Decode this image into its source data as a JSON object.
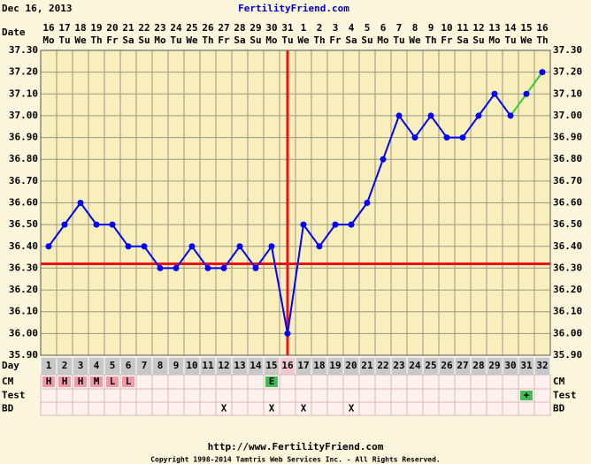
{
  "header": {
    "date": "Dec 16, 2013",
    "site": "FertilityFriend.com"
  },
  "chart_data": {
    "type": "line",
    "date_label": "Date",
    "day_label": "Day",
    "dates": [
      16,
      17,
      18,
      19,
      20,
      21,
      22,
      23,
      24,
      25,
      26,
      27,
      28,
      29,
      30,
      31,
      1,
      2,
      3,
      4,
      5,
      6,
      7,
      8,
      9,
      10,
      11,
      12,
      13,
      14,
      15,
      16
    ],
    "weekdays": [
      "Mo",
      "Tu",
      "We",
      "Th",
      "Fr",
      "Sa",
      "Su",
      "Mo",
      "Tu",
      "We",
      "Th",
      "Fr",
      "Sa",
      "Su",
      "Mo",
      "Tu",
      "We",
      "Th",
      "Fr",
      "Sa",
      "Su",
      "Mo",
      "Tu",
      "We",
      "Th",
      "Fr",
      "Sa",
      "Su",
      "Mo",
      "Tu",
      "We",
      "Th"
    ],
    "x": [
      1,
      2,
      3,
      4,
      5,
      6,
      7,
      8,
      9,
      10,
      11,
      12,
      13,
      14,
      15,
      16,
      17,
      18,
      19,
      20,
      21,
      22,
      23,
      24,
      25,
      26,
      27,
      28,
      29,
      30,
      31,
      32
    ],
    "values": [
      36.4,
      36.5,
      36.6,
      36.5,
      36.5,
      36.4,
      36.4,
      36.3,
      36.3,
      36.4,
      36.3,
      36.3,
      36.4,
      36.3,
      36.4,
      36.0,
      36.5,
      36.4,
      36.5,
      36.5,
      36.6,
      36.8,
      37.0,
      36.9,
      37.0,
      36.9,
      36.9,
      37.0,
      37.1,
      37.0,
      37.1,
      37.2
    ],
    "color": "#0000ff",
    "projection_color": "#33cc33",
    "projection_from_day": 30,
    "coverline": 36.32,
    "ovulation_day": 16,
    "marker_color": "#ee1111",
    "ylim": [
      35.9,
      37.3
    ],
    "yticks": [
      {
        "value": 35.9,
        "label": "35.90"
      },
      {
        "value": 36.0,
        "label": "36.00"
      },
      {
        "value": 36.1,
        "label": "36.10"
      },
      {
        "value": 36.2,
        "label": "36.20"
      },
      {
        "value": 36.3,
        "label": "36.30"
      },
      {
        "value": 36.4,
        "label": "36.40"
      },
      {
        "value": 36.5,
        "label": "36.50"
      },
      {
        "value": 36.6,
        "label": "36.60"
      },
      {
        "value": 36.7,
        "label": "36.70"
      },
      {
        "value": 36.8,
        "label": "36.80"
      },
      {
        "value": 36.9,
        "label": "36.90"
      },
      {
        "value": 37.0,
        "label": "37.00"
      },
      {
        "value": 37.1,
        "label": "37.10"
      },
      {
        "value": 37.2,
        "label": "37.20"
      },
      {
        "value": 37.3,
        "label": "37.30"
      }
    ],
    "rows": [
      {
        "label": "CM",
        "cells": [
          "H",
          "H",
          "H",
          "M",
          "L",
          "L",
          null,
          null,
          null,
          null,
          null,
          null,
          null,
          null,
          "E",
          null,
          null,
          null,
          null,
          null,
          null,
          null,
          null,
          null,
          null,
          null,
          null,
          null,
          null,
          null,
          null,
          null
        ]
      },
      {
        "label": "Test",
        "cells": [
          null,
          null,
          null,
          null,
          null,
          null,
          null,
          null,
          null,
          null,
          null,
          null,
          null,
          null,
          null,
          null,
          null,
          null,
          null,
          null,
          null,
          null,
          null,
          null,
          null,
          null,
          null,
          null,
          null,
          null,
          "+",
          null
        ]
      },
      {
        "label": "BD",
        "cells": [
          null,
          null,
          null,
          null,
          null,
          null,
          null,
          null,
          null,
          null,
          null,
          "X",
          null,
          null,
          "X",
          null,
          "X",
          null,
          null,
          "X",
          null,
          null,
          null,
          null,
          null,
          null,
          null,
          null,
          null,
          null,
          null,
          null
        ]
      }
    ],
    "cell_colors": {
      "H": "#f29aaa",
      "M": "#f29aaa",
      "L": "#f29aaa",
      "E": "#44bb55",
      "+": "#44bb55"
    }
  },
  "footer": {
    "url": "http://www.FertilityFriend.com",
    "copyright": "Copyright 1998-2014 Tamtris Web Services Inc. - All Rights Reserved."
  }
}
